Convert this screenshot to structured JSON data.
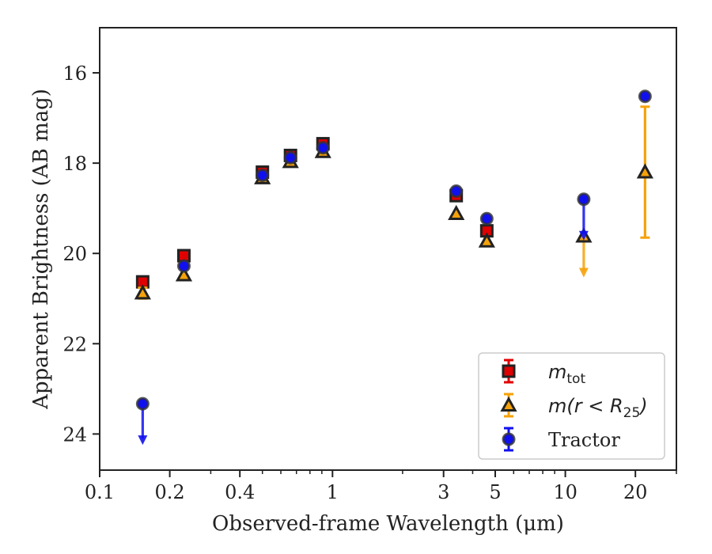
{
  "chart_data": {
    "type": "scatter",
    "title": "",
    "xlabel": "Observed-frame Wavelength (μm)",
    "ylabel": "Apparent Brightness (AB mag)",
    "xscale": "log",
    "xlim": [
      0.1,
      30
    ],
    "ylim": [
      24.8,
      15.0
    ],
    "y_inverted": true,
    "x_ticks": [
      {
        "value": 0.1,
        "label": "0.1"
      },
      {
        "value": 0.2,
        "label": "0.2"
      },
      {
        "value": 0.4,
        "label": "0.4"
      },
      {
        "value": 1,
        "label": "1"
      },
      {
        "value": 3,
        "label": "3"
      },
      {
        "value": 5,
        "label": "5"
      },
      {
        "value": 10,
        "label": "10"
      },
      {
        "value": 20,
        "label": "20"
      }
    ],
    "y_ticks": [
      {
        "value": 16,
        "label": "16"
      },
      {
        "value": 18,
        "label": "18"
      },
      {
        "value": 20,
        "label": "20"
      },
      {
        "value": 22,
        "label": "22"
      },
      {
        "value": 24,
        "label": "24"
      }
    ],
    "grid": false,
    "legend_position": "lower-right",
    "series": [
      {
        "name": "m_tot",
        "legend_main": "m",
        "legend_sub": "tot",
        "marker": "square",
        "color": "#e00000",
        "edge_color": "#222222",
        "points": [
          {
            "x": 0.153,
            "y": 20.63
          },
          {
            "x": 0.23,
            "y": 20.05
          },
          {
            "x": 0.5,
            "y": 18.2
          },
          {
            "x": 0.66,
            "y": 17.83
          },
          {
            "x": 0.91,
            "y": 17.57
          },
          {
            "x": 3.4,
            "y": 18.72
          },
          {
            "x": 4.6,
            "y": 19.5
          }
        ]
      },
      {
        "name": "m(r < R25)",
        "legend_main": "m(r < R",
        "legend_sub": "25",
        "legend_tail": ")",
        "marker": "triangle",
        "color": "#f5a20a",
        "edge_color": "#222222",
        "points": [
          {
            "x": 0.153,
            "y": 20.88,
            "yerr": 0.12
          },
          {
            "x": 0.23,
            "y": 20.48
          },
          {
            "x": 0.5,
            "y": 18.33
          },
          {
            "x": 0.66,
            "y": 17.97
          },
          {
            "x": 0.91,
            "y": 17.75
          },
          {
            "x": 3.4,
            "y": 19.12
          },
          {
            "x": 4.6,
            "y": 19.73
          },
          {
            "x": 12.0,
            "y": 19.62,
            "upper_limit": true
          },
          {
            "x": 22.0,
            "y": 18.2,
            "yerr": 1.45
          }
        ]
      },
      {
        "name": "Tractor",
        "legend_main": "Tractor",
        "marker": "circle",
        "color": "#1010ee",
        "edge_color": "#333333",
        "points": [
          {
            "x": 0.153,
            "y": 23.33,
            "upper_limit": true
          },
          {
            "x": 0.23,
            "y": 20.28
          },
          {
            "x": 0.5,
            "y": 18.27
          },
          {
            "x": 0.66,
            "y": 17.88
          },
          {
            "x": 0.91,
            "y": 17.66
          },
          {
            "x": 3.4,
            "y": 18.62
          },
          {
            "x": 4.6,
            "y": 19.23
          },
          {
            "x": 12.0,
            "y": 18.8,
            "upper_limit": true
          },
          {
            "x": 22.0,
            "y": 16.52
          }
        ]
      }
    ]
  }
}
